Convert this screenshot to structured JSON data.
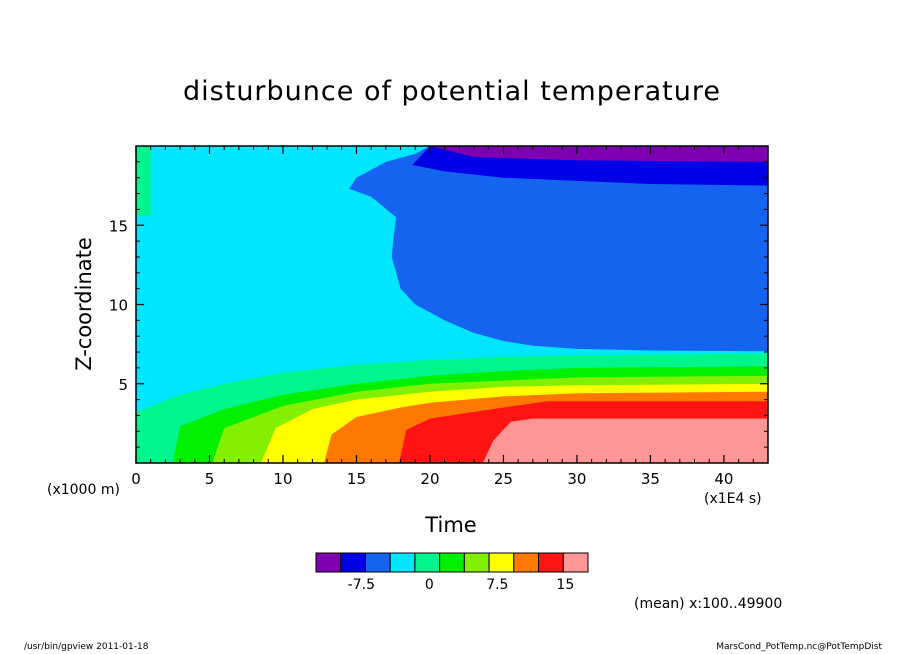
{
  "chart_data": {
    "type": "heatmap",
    "title": "disturbunce of potential temperature",
    "xlabel": "Time",
    "ylabel": "Z-coordinate",
    "x_unit_label": "(x1E4 s)",
    "y_unit_label": "(x1000 m)",
    "xlim": [
      0,
      43
    ],
    "ylim": [
      0,
      20
    ],
    "x_ticks": [
      0,
      5,
      10,
      15,
      20,
      25,
      30,
      35,
      40
    ],
    "y_ticks": [
      5,
      10,
      15
    ],
    "annotation": "(mean) x:100..49900",
    "colorbar": {
      "levels": [
        -12.5,
        -10,
        -7.5,
        -5,
        -2.5,
        0,
        2.5,
        5,
        7.5,
        10,
        12.5,
        15,
        17.5
      ],
      "tick_values": [
        -7.5,
        0,
        7.5,
        15
      ],
      "tick_labels": [
        "-7.5",
        "0",
        "7.5",
        "15"
      ],
      "colors": [
        "#7f00b3",
        "#0000e6",
        "#1464f0",
        "#00e6ff",
        "#00f58c",
        "#00f000",
        "#82f000",
        "#ffff00",
        "#ff7800",
        "#ff1414",
        "#ff9696"
      ]
    },
    "regions": [
      {
        "color_index": 3,
        "description": "upper left",
        "points": [
          [
            0,
            20
          ],
          [
            20,
            20
          ],
          [
            0,
            0
          ]
        ]
      },
      {
        "color_index": 4,
        "points": [
          [
            0,
            0
          ]
        ]
      }
    ],
    "contours": [
      {
        "level": -2.5,
        "between": [
          2,
          3
        ],
        "points": [
          [
            20,
            20
          ],
          [
            19,
            19.5
          ],
          [
            17,
            19
          ],
          [
            15,
            18
          ],
          [
            14.5,
            17.3
          ],
          [
            16,
            16.8
          ],
          [
            17.7,
            15.5
          ],
          [
            17.5,
            14
          ],
          [
            17.4,
            13
          ],
          [
            18,
            11
          ],
          [
            19,
            10
          ],
          [
            21,
            9
          ],
          [
            23,
            8.2
          ],
          [
            25,
            7.7
          ],
          [
            27,
            7.4
          ],
          [
            30,
            7.2
          ],
          [
            35,
            7.1
          ],
          [
            43,
            7.05
          ]
        ]
      },
      {
        "level": -5,
        "between": [
          1,
          2
        ],
        "points": [
          [
            20,
            20
          ],
          [
            18.8,
            18.8
          ],
          [
            21,
            18.4
          ],
          [
            25,
            18
          ],
          [
            30,
            17.8
          ],
          [
            35,
            17.6
          ],
          [
            43,
            17.5
          ]
        ]
      },
      {
        "level": -7.5,
        "between": [
          0,
          1
        ],
        "points": [
          [
            20,
            20
          ],
          [
            23,
            19.3
          ],
          [
            30,
            19.1
          ],
          [
            43,
            19
          ]
        ]
      },
      {
        "level": 0,
        "between": [
          3,
          4
        ],
        "points": [
          [
            0,
            3.2
          ],
          [
            3,
            4.3
          ],
          [
            6,
            5.0
          ],
          [
            10,
            5.7
          ],
          [
            15,
            6.2
          ],
          [
            20,
            6.5
          ],
          [
            25,
            6.7
          ],
          [
            30,
            6.8
          ],
          [
            43,
            6.9
          ]
        ]
      },
      {
        "level": 2.5,
        "between": [
          4,
          5
        ],
        "points": [
          [
            2.5,
            0
          ],
          [
            3,
            2.3
          ],
          [
            6,
            3.4
          ],
          [
            10,
            4.3
          ],
          [
            15,
            5.0
          ],
          [
            20,
            5.5
          ],
          [
            25,
            5.8
          ],
          [
            30,
            6.0
          ],
          [
            43,
            6.1
          ]
        ]
      },
      {
        "level": 5,
        "between": [
          5,
          6
        ],
        "points": [
          [
            5.2,
            0
          ],
          [
            6,
            2.2
          ],
          [
            10,
            3.6
          ],
          [
            15,
            4.5
          ],
          [
            20,
            5.0
          ],
          [
            25,
            5.2
          ],
          [
            30,
            5.4
          ],
          [
            43,
            5.5
          ]
        ]
      },
      {
        "level": 7.5,
        "between": [
          6,
          7
        ],
        "points": [
          [
            8.5,
            0
          ],
          [
            9.5,
            2.2
          ],
          [
            12,
            3.4
          ],
          [
            15,
            4.0
          ],
          [
            20,
            4.5
          ],
          [
            25,
            4.8
          ],
          [
            30,
            4.9
          ],
          [
            43,
            5.0
          ]
        ]
      },
      {
        "level": 10,
        "between": [
          7,
          8
        ],
        "points": [
          [
            12.8,
            0
          ],
          [
            13.3,
            1.8
          ],
          [
            15,
            2.9
          ],
          [
            18,
            3.5
          ],
          [
            20,
            3.8
          ],
          [
            25,
            4.2
          ],
          [
            30,
            4.4
          ],
          [
            43,
            4.5
          ]
        ]
      },
      {
        "level": 12.5,
        "between": [
          8,
          9
        ],
        "points": [
          [
            17.9,
            0
          ],
          [
            18.4,
            2.1
          ],
          [
            20,
            2.8
          ],
          [
            25,
            3.5
          ],
          [
            28,
            3.9
          ],
          [
            30,
            3.9
          ],
          [
            43,
            3.9
          ]
        ]
      },
      {
        "level": 15,
        "between": [
          9,
          10
        ],
        "points": [
          [
            23.6,
            0
          ],
          [
            24.3,
            1.4
          ],
          [
            25.5,
            2.6
          ],
          [
            27,
            2.8
          ],
          [
            30,
            2.8
          ],
          [
            43,
            2.8
          ]
        ]
      }
    ]
  },
  "footer": {
    "left": "/usr/bin/gpview  2011-01-18",
    "right": "MarsCond_PotTemp.nc@PotTempDist"
  }
}
